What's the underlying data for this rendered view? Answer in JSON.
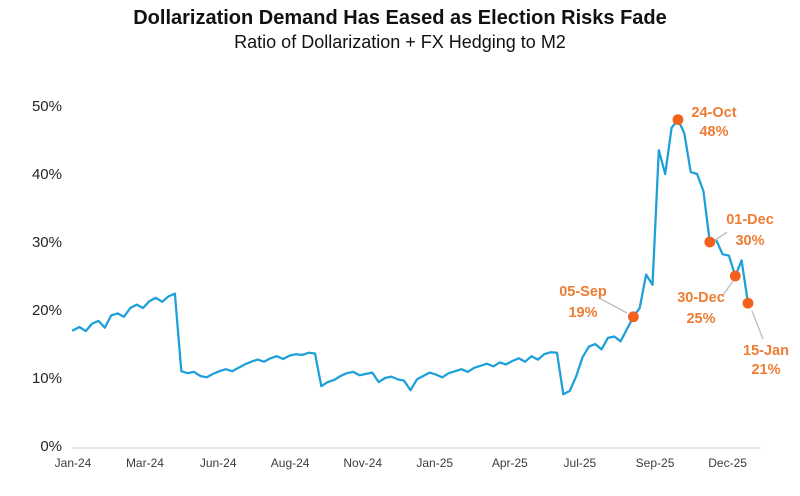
{
  "title": "Dollarization Demand Has Eased as Election Risks Fade",
  "subtitle": "Ratio of Dollarization + FX Hedging to M2",
  "chart_data": {
    "type": "line",
    "title": "Dollarization Demand Has Eased as Election Risks Fade",
    "subtitle": "Ratio of Dollarization + FX Hedging to M2",
    "xlabel": "",
    "ylabel": "",
    "ylim": [
      0,
      52
    ],
    "grid": false,
    "legend": "none",
    "y_ticks": [
      0,
      10,
      20,
      30,
      40,
      50
    ],
    "y_tick_suffix": "%",
    "x_ticks": [
      {
        "label": "Jan-24",
        "index": 0
      },
      {
        "label": "Mar-24",
        "index": 11.3
      },
      {
        "label": "Jun-24",
        "index": 22.8
      },
      {
        "label": "Aug-24",
        "index": 34.1
      },
      {
        "label": "Nov-24",
        "index": 45.5
      },
      {
        "label": "Jan-25",
        "index": 56.8
      },
      {
        "label": "Apr-25",
        "index": 68.6
      },
      {
        "label": "Jul-25",
        "index": 79.6
      },
      {
        "label": "Sep-25",
        "index": 91.4
      },
      {
        "label": "Dec-25",
        "index": 102.8
      }
    ],
    "series": [
      {
        "name": "Ratio of Dollarization + FX Hedging to M2",
        "frequency": "weekly",
        "start": "Jan-2024",
        "end": "15-Jan-2026",
        "unit": "%",
        "values": [
          17.0,
          17.5,
          16.9,
          18.0,
          18.4,
          17.4,
          19.2,
          19.5,
          19.0,
          20.3,
          20.8,
          20.3,
          21.3,
          21.8,
          21.2,
          22.0,
          22.4,
          11.0,
          10.7,
          10.9,
          10.3,
          10.1,
          10.6,
          11.0,
          11.3,
          11.0,
          11.5,
          12.0,
          12.4,
          12.7,
          12.4,
          12.9,
          13.2,
          12.8,
          13.3,
          13.5,
          13.4,
          13.7,
          13.6,
          8.8,
          9.4,
          9.7,
          10.3,
          10.7,
          10.9,
          10.4,
          10.6,
          10.8,
          9.4,
          10.0,
          10.2,
          9.8,
          9.6,
          8.2,
          9.8,
          10.3,
          10.8,
          10.5,
          10.1,
          10.7,
          11.0,
          11.3,
          10.9,
          11.5,
          11.8,
          12.1,
          11.7,
          12.3,
          12.0,
          12.5,
          12.9,
          12.4,
          13.2,
          12.7,
          13.5,
          13.8,
          13.7,
          7.6,
          8.1,
          10.2,
          13.0,
          14.6,
          15.0,
          14.2,
          15.9,
          16.1,
          15.4,
          17.2,
          19.0,
          20.3,
          25.2,
          23.7,
          43.5,
          40.0,
          46.8,
          48.0,
          46.0,
          40.3,
          40.0,
          37.5,
          30.0,
          30.3,
          28.2,
          28.0,
          25.0,
          27.3,
          21.0
        ]
      }
    ],
    "annotations": [
      {
        "date": "05-Sep",
        "value_label": "19%",
        "value": 19,
        "index": 88
      },
      {
        "date": "24-Oct",
        "value_label": "48%",
        "value": 48,
        "index": 95
      },
      {
        "date": "01-Dec",
        "value_label": "30%",
        "value": 30,
        "index": 100
      },
      {
        "date": "30-Dec",
        "value_label": "25%",
        "value": 25,
        "index": 104
      },
      {
        "date": "15-Jan",
        "value_label": "21%",
        "value": 21,
        "index": 106
      }
    ],
    "colors": {
      "line": "#1D9FD9",
      "dot": "#F4611C",
      "annotation_text": "#EE7C34",
      "leader_line": "#BFBFBF",
      "axis_line": "#D9D9D9",
      "x_tick_text": "#3F3C38",
      "y_tick_text": "#262626",
      "title_text": "#111111"
    }
  }
}
